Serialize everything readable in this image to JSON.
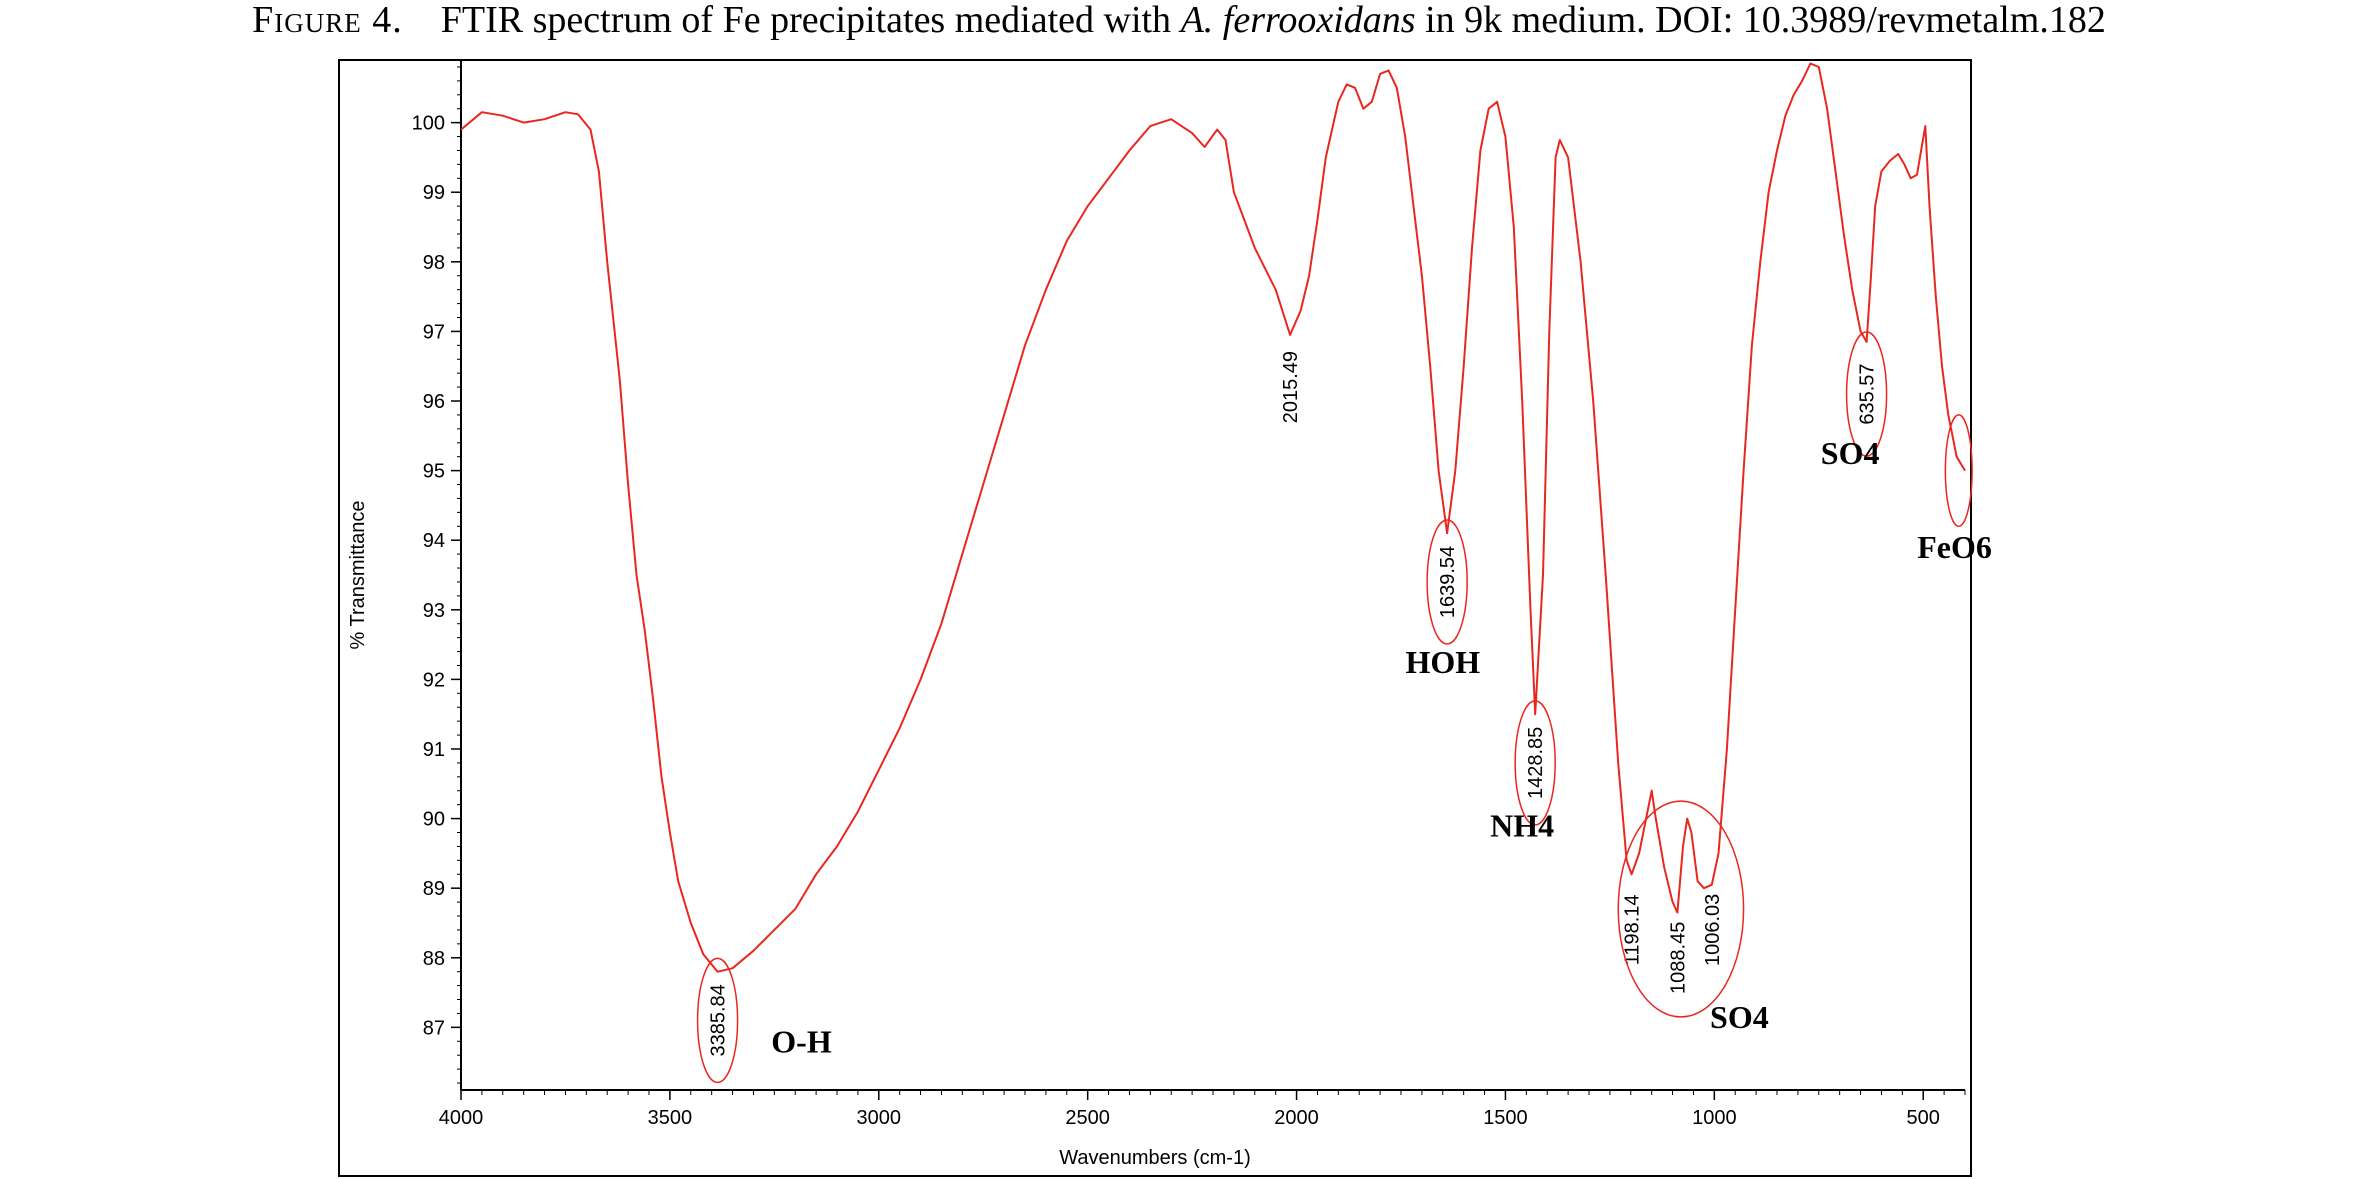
{
  "caption": {
    "figure_label": "Figure 4.",
    "text_before": "FTIR spectrum of Fe precipitates mediated with ",
    "species": "A. ferrooxidans",
    "text_after": " in 9k medium. DOI: 10.3989/revmetalm.182"
  },
  "colors": {
    "line": "#e8271f",
    "axis": "#000000",
    "frame": "#000000"
  },
  "chart_data": {
    "type": "line",
    "title": "",
    "xlabel": "Wavenumbers (cm-1)",
    "ylabel": "% Transmittance",
    "xlim": [
      4000,
      400
    ],
    "ylim": [
      86.1,
      100.9
    ],
    "x_ticks": [
      4000,
      3500,
      3000,
      2500,
      2000,
      1500,
      1000,
      500
    ],
    "y_ticks": [
      87,
      88,
      89,
      90,
      91,
      92,
      93,
      94,
      95,
      96,
      97,
      98,
      99,
      100
    ],
    "grid": false,
    "series": [
      {
        "name": "",
        "points": [
          [
            4000,
            99.9
          ],
          [
            3950,
            100.15
          ],
          [
            3900,
            100.1
          ],
          [
            3850,
            100.0
          ],
          [
            3800,
            100.05
          ],
          [
            3750,
            100.15
          ],
          [
            3720,
            100.12
          ],
          [
            3690,
            99.9
          ],
          [
            3670,
            99.3
          ],
          [
            3650,
            98.0
          ],
          [
            3620,
            96.3
          ],
          [
            3600,
            94.8
          ],
          [
            3580,
            93.5
          ],
          [
            3560,
            92.7
          ],
          [
            3540,
            91.7
          ],
          [
            3520,
            90.6
          ],
          [
            3500,
            89.8
          ],
          [
            3480,
            89.1
          ],
          [
            3450,
            88.5
          ],
          [
            3420,
            88.05
          ],
          [
            3385.84,
            87.8
          ],
          [
            3350,
            87.85
          ],
          [
            3300,
            88.1
          ],
          [
            3250,
            88.4
          ],
          [
            3200,
            88.7
          ],
          [
            3150,
            89.2
          ],
          [
            3100,
            89.6
          ],
          [
            3050,
            90.1
          ],
          [
            3000,
            90.7
          ],
          [
            2950,
            91.3
          ],
          [
            2900,
            92.0
          ],
          [
            2850,
            92.8
          ],
          [
            2800,
            93.8
          ],
          [
            2750,
            94.8
          ],
          [
            2700,
            95.8
          ],
          [
            2650,
            96.8
          ],
          [
            2600,
            97.6
          ],
          [
            2550,
            98.3
          ],
          [
            2500,
            98.8
          ],
          [
            2450,
            99.2
          ],
          [
            2400,
            99.6
          ],
          [
            2350,
            99.95
          ],
          [
            2300,
            100.05
          ],
          [
            2250,
            99.85
          ],
          [
            2220,
            99.65
          ],
          [
            2190,
            99.9
          ],
          [
            2170,
            99.75
          ],
          [
            2150,
            99.0
          ],
          [
            2100,
            98.2
          ],
          [
            2050,
            97.6
          ],
          [
            2015.49,
            96.95
          ],
          [
            1990,
            97.3
          ],
          [
            1970,
            97.8
          ],
          [
            1950,
            98.6
          ],
          [
            1930,
            99.5
          ],
          [
            1900,
            100.3
          ],
          [
            1880,
            100.55
          ],
          [
            1860,
            100.5
          ],
          [
            1840,
            100.2
          ],
          [
            1820,
            100.3
          ],
          [
            1800,
            100.7
          ],
          [
            1780,
            100.75
          ],
          [
            1760,
            100.5
          ],
          [
            1740,
            99.8
          ],
          [
            1720,
            98.8
          ],
          [
            1700,
            97.8
          ],
          [
            1680,
            96.5
          ],
          [
            1660,
            95.0
          ],
          [
            1639.54,
            94.1
          ],
          [
            1620,
            95.0
          ],
          [
            1600,
            96.5
          ],
          [
            1580,
            98.2
          ],
          [
            1560,
            99.6
          ],
          [
            1540,
            100.2
          ],
          [
            1520,
            100.3
          ],
          [
            1500,
            99.8
          ],
          [
            1480,
            98.5
          ],
          [
            1460,
            96.0
          ],
          [
            1440,
            93.0
          ],
          [
            1428.85,
            91.5
          ],
          [
            1410,
            93.5
          ],
          [
            1395,
            97.0
          ],
          [
            1380,
            99.5
          ],
          [
            1370,
            99.75
          ],
          [
            1350,
            99.5
          ],
          [
            1320,
            98.0
          ],
          [
            1290,
            96.0
          ],
          [
            1260,
            93.5
          ],
          [
            1230,
            90.8
          ],
          [
            1210,
            89.4
          ],
          [
            1198.14,
            89.2
          ],
          [
            1180,
            89.5
          ],
          [
            1160,
            90.1
          ],
          [
            1150,
            90.4
          ],
          [
            1140,
            90.0
          ],
          [
            1120,
            89.3
          ],
          [
            1100,
            88.8
          ],
          [
            1088.45,
            88.65
          ],
          [
            1075,
            89.6
          ],
          [
            1065,
            90.0
          ],
          [
            1055,
            89.8
          ],
          [
            1040,
            89.1
          ],
          [
            1025,
            89.0
          ],
          [
            1006.03,
            89.05
          ],
          [
            990,
            89.5
          ],
          [
            970,
            91.0
          ],
          [
            950,
            93.0
          ],
          [
            930,
            95.0
          ],
          [
            910,
            96.8
          ],
          [
            890,
            98.0
          ],
          [
            870,
            99.0
          ],
          [
            850,
            99.6
          ],
          [
            830,
            100.1
          ],
          [
            810,
            100.4
          ],
          [
            790,
            100.6
          ],
          [
            770,
            100.85
          ],
          [
            750,
            100.8
          ],
          [
            730,
            100.2
          ],
          [
            710,
            99.3
          ],
          [
            690,
            98.4
          ],
          [
            670,
            97.6
          ],
          [
            650,
            97.0
          ],
          [
            635.57,
            96.85
          ],
          [
            625,
            97.8
          ],
          [
            615,
            98.8
          ],
          [
            600,
            99.3
          ],
          [
            580,
            99.45
          ],
          [
            560,
            99.55
          ],
          [
            545,
            99.4
          ],
          [
            530,
            99.2
          ],
          [
            515,
            99.25
          ],
          [
            505,
            99.6
          ],
          [
            495,
            99.95
          ],
          [
            485,
            98.8
          ],
          [
            470,
            97.5
          ],
          [
            455,
            96.5
          ],
          [
            440,
            95.8
          ],
          [
            430,
            95.5
          ],
          [
            420,
            95.2
          ],
          [
            410,
            95.1
          ],
          [
            400,
            95.0
          ]
        ]
      }
    ],
    "peak_labels": [
      {
        "x": 3385.84,
        "text": "3385.84",
        "y": 87.1,
        "ellipse": true
      },
      {
        "x": 2015.49,
        "text": "2015.49",
        "y": 96.2,
        "ellipse": false
      },
      {
        "x": 1639.54,
        "text": "1639.54",
        "y": 93.4,
        "ellipse": true
      },
      {
        "x": 1428.85,
        "text": "1428.85",
        "y": 90.8,
        "ellipse": true
      },
      {
        "x": 1198.14,
        "text": "1198.14",
        "y": 88.4,
        "ellipse": false
      },
      {
        "x": 1088.45,
        "text": "1088.45",
        "y": 88.0,
        "ellipse": false
      },
      {
        "x": 1006.03,
        "text": "1006.03",
        "y": 88.4,
        "ellipse": false
      },
      {
        "x": 635.57,
        "text": "635.57",
        "y": 96.1,
        "ellipse": true
      }
    ],
    "annotations": [
      {
        "text": "O-H",
        "x": 3185,
        "y": 86.8
      },
      {
        "text": "HOH",
        "x": 1650,
        "y": 92.25
      },
      {
        "text": "NH4",
        "x": 1460,
        "y": 89.9
      },
      {
        "text": "SO4",
        "x": 940,
        "y": 87.15
      },
      {
        "text": "SO4",
        "x": 675,
        "y": 95.25
      },
      {
        "text": "FeO6",
        "x": 425,
        "y": 93.9
      }
    ],
    "group_ellipses": [
      {
        "x": 1080,
        "y": 88.7,
        "rx_units": 150,
        "ry_units": 1.55
      },
      {
        "x": 415,
        "y": 95.0,
        "rx_units": 32,
        "ry_units": 0.8
      }
    ]
  }
}
